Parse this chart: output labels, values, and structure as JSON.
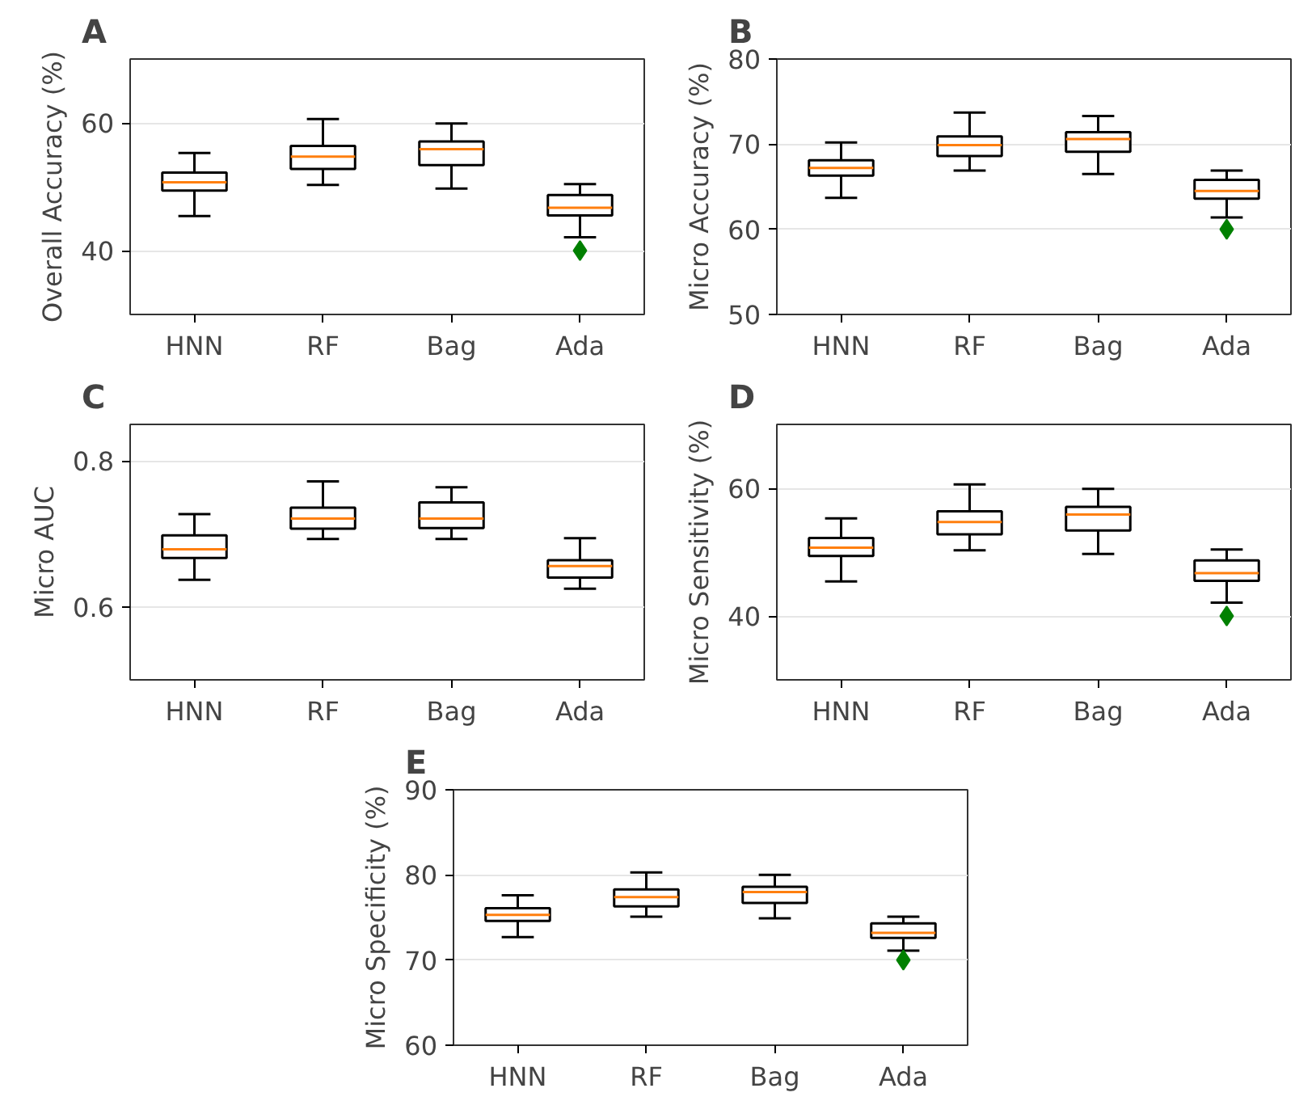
{
  "chart_data": [
    {
      "type": "box",
      "title": "A",
      "ylabel": "Overall Accuracy (%)",
      "categories": [
        "HNN",
        "RF",
        "Bag",
        "Ada"
      ],
      "ylim": [
        30,
        70
      ],
      "yticks": [
        40,
        60
      ],
      "grid": "y",
      "marker": "diamond",
      "boxes": [
        {
          "low": 45.4,
          "q1": 49.4,
          "median": 50.7,
          "q3": 52.2,
          "high": 55.3
        },
        {
          "low": 50.3,
          "q1": 52.8,
          "median": 54.7,
          "q3": 56.4,
          "high": 60.6
        },
        {
          "low": 49.7,
          "q1": 53.4,
          "median": 55.9,
          "q3": 57.1,
          "high": 59.9
        },
        {
          "low": 42.1,
          "q1": 45.5,
          "median": 46.7,
          "q3": 48.7,
          "high": 50.4,
          "outliers": [
            40
          ]
        }
      ]
    },
    {
      "type": "box",
      "title": "B",
      "ylabel": "Micro Accuracy (%)",
      "categories": [
        "HNN",
        "RF",
        "Bag",
        "Ada"
      ],
      "ylim": [
        50,
        80
      ],
      "yticks": [
        50,
        60,
        70,
        80
      ],
      "grid": "y",
      "marker": "diamond",
      "boxes": [
        {
          "low": 63.7,
          "q1": 66.3,
          "median": 67.2,
          "q3": 68.1,
          "high": 70.2
        },
        {
          "low": 66.9,
          "q1": 68.6,
          "median": 69.9,
          "q3": 70.9,
          "high": 73.7
        },
        {
          "low": 66.5,
          "q1": 69.1,
          "median": 70.6,
          "q3": 71.4,
          "high": 73.3
        },
        {
          "low": 61.4,
          "q1": 63.6,
          "median": 64.5,
          "q3": 65.8,
          "high": 66.9,
          "outliers": [
            60
          ]
        }
      ]
    },
    {
      "type": "box",
      "title": "C",
      "ylabel": "Micro AUC",
      "categories": [
        "HNN",
        "RF",
        "Bag",
        "Ada"
      ],
      "ylim": [
        0.5,
        0.85
      ],
      "yticks": [
        0.6,
        0.8
      ],
      "grid": "y",
      "marker": "diamond",
      "boxes": [
        {
          "low": 0.637,
          "q1": 0.667,
          "median": 0.679,
          "q3": 0.698,
          "high": 0.727
        },
        {
          "low": 0.693,
          "q1": 0.707,
          "median": 0.721,
          "q3": 0.736,
          "high": 0.772
        },
        {
          "low": 0.693,
          "q1": 0.708,
          "median": 0.721,
          "q3": 0.743,
          "high": 0.764
        },
        {
          "low": 0.625,
          "q1": 0.64,
          "median": 0.656,
          "q3": 0.664,
          "high": 0.694
        }
      ]
    },
    {
      "type": "box",
      "title": "D",
      "ylabel": "Micro Sensitivity (%)",
      "categories": [
        "HNN",
        "RF",
        "Bag",
        "Ada"
      ],
      "ylim": [
        30,
        70
      ],
      "yticks": [
        40,
        60
      ],
      "grid": "y",
      "marker": "diamond",
      "boxes": [
        {
          "low": 45.4,
          "q1": 49.4,
          "median": 50.7,
          "q3": 52.2,
          "high": 55.3
        },
        {
          "low": 50.3,
          "q1": 52.8,
          "median": 54.7,
          "q3": 56.4,
          "high": 60.6
        },
        {
          "low": 49.7,
          "q1": 53.4,
          "median": 55.9,
          "q3": 57.1,
          "high": 59.9
        },
        {
          "low": 42.1,
          "q1": 45.5,
          "median": 46.7,
          "q3": 48.7,
          "high": 50.4,
          "outliers": [
            40
          ]
        }
      ]
    },
    {
      "type": "box",
      "title": "E",
      "ylabel": "Micro Specificity (%)",
      "categories": [
        "HNN",
        "RF",
        "Bag",
        "Ada"
      ],
      "ylim": [
        60,
        90
      ],
      "yticks": [
        60,
        70,
        80,
        90
      ],
      "grid": "y",
      "marker": "diamond",
      "boxes": [
        {
          "low": 72.7,
          "q1": 74.6,
          "median": 75.3,
          "q3": 76.1,
          "high": 77.6
        },
        {
          "low": 75.1,
          "q1": 76.3,
          "median": 77.4,
          "q3": 78.3,
          "high": 80.3
        },
        {
          "low": 74.9,
          "q1": 76.7,
          "median": 78.0,
          "q3": 78.6,
          "high": 80.0
        },
        {
          "low": 71.1,
          "q1": 72.6,
          "median": 73.2,
          "q3": 74.3,
          "high": 75.1,
          "outliers": [
            70
          ]
        }
      ]
    }
  ]
}
